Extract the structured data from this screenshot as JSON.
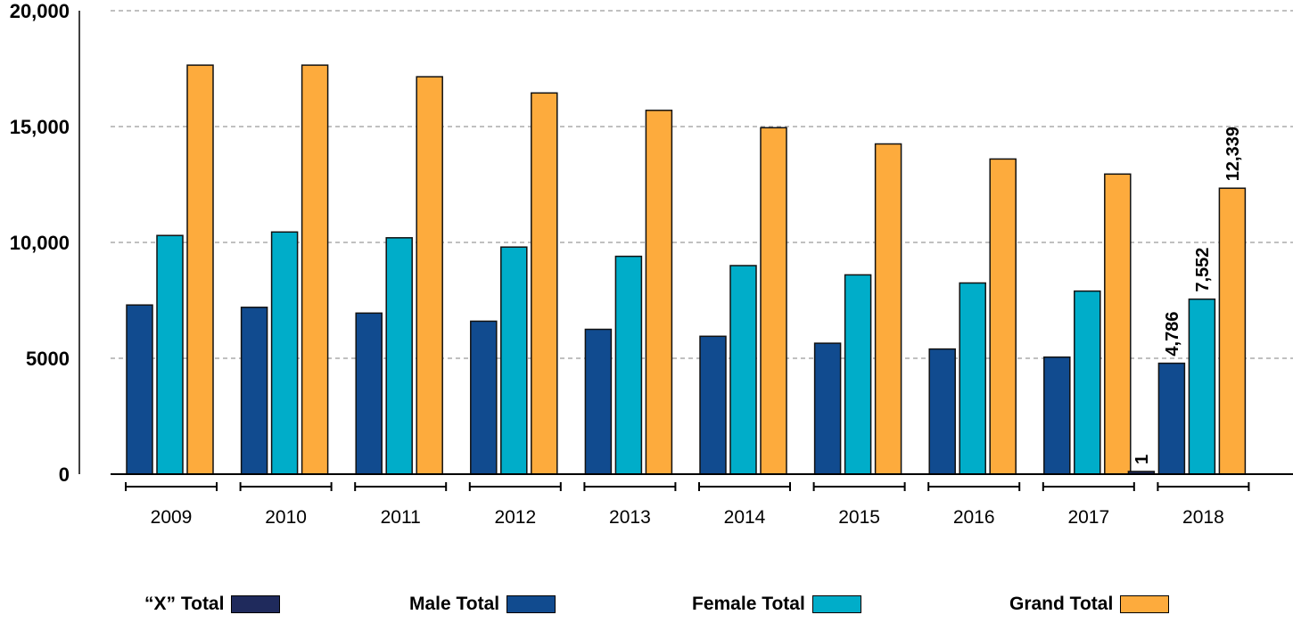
{
  "chart_data": {
    "type": "bar",
    "title": "",
    "xlabel": "",
    "ylabel": "",
    "ylim": [
      0,
      20000
    ],
    "yticks": [
      {
        "value": 0,
        "label": "0"
      },
      {
        "value": 5000,
        "label": "5000"
      },
      {
        "value": 10000,
        "label": "10,000"
      },
      {
        "value": 15000,
        "label": "15,000"
      },
      {
        "value": 20000,
        "label": "20,000"
      }
    ],
    "grid": true,
    "legend_position": "bottom",
    "categories": [
      "2009",
      "2010",
      "2011",
      "2012",
      "2013",
      "2014",
      "2015",
      "2016",
      "2017",
      "2018"
    ],
    "series": [
      {
        "name": "“X” Total",
        "color": "#1f2a5c",
        "values": [
          null,
          null,
          null,
          null,
          null,
          null,
          null,
          null,
          null,
          1
        ]
      },
      {
        "name": "Male Total",
        "color": "#114b8f",
        "values": [
          7300,
          7200,
          6950,
          6600,
          6250,
          5950,
          5650,
          5400,
          5050,
          4786
        ]
      },
      {
        "name": "Female Total",
        "color": "#00adc9",
        "values": [
          10300,
          10450,
          10200,
          9800,
          9400,
          9000,
          8600,
          8250,
          7900,
          7552
        ]
      },
      {
        "name": "Grand Total",
        "color": "#fdab3d",
        "values": [
          17650,
          17650,
          17150,
          16450,
          15700,
          14950,
          14250,
          13600,
          12950,
          12339
        ]
      }
    ],
    "data_labels": [
      {
        "category": "2018",
        "series": "“X” Total",
        "text": "1"
      },
      {
        "category": "2018",
        "series": "Male Total",
        "text": "4,786"
      },
      {
        "category": "2018",
        "series": "Female Total",
        "text": "7,552"
      },
      {
        "category": "2018",
        "series": "Grand Total",
        "text": "12,339"
      }
    ]
  },
  "legend": {
    "items": [
      {
        "label": "“X” Total",
        "color": "#1f2a5c"
      },
      {
        "label": "Male Total",
        "color": "#114b8f"
      },
      {
        "label": "Female Total",
        "color": "#00adc9"
      },
      {
        "label": "Grand Total",
        "color": "#fdab3d"
      }
    ]
  }
}
